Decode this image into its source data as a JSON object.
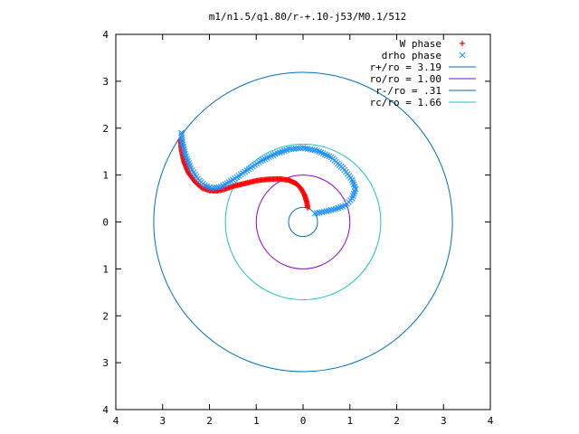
{
  "chart_data": {
    "type": "scatter",
    "title": "m1/n1.5/q1.80/r-+.10-j53/M0.1/512",
    "xlabel": "",
    "ylabel": "",
    "xlim": [
      -4,
      4
    ],
    "ylim": [
      -4,
      4
    ],
    "x_tick_labels": [
      "4",
      "3",
      "2",
      "1",
      "0",
      "1",
      "2",
      "3",
      "4"
    ],
    "y_tick_labels": [
      "4",
      "3",
      "2",
      "1",
      "0",
      "1",
      "2",
      "3",
      "4"
    ],
    "grid": false,
    "legend_position": "top-right",
    "series": [
      {
        "name": "W phase",
        "marker": "plus",
        "color": "#ff0000",
        "points": [
          [
            0.1,
            0.3
          ],
          [
            0.08,
            0.42
          ],
          [
            0.03,
            0.58
          ],
          [
            -0.05,
            0.72
          ],
          [
            -0.15,
            0.82
          ],
          [
            -0.3,
            0.89
          ],
          [
            -0.5,
            0.92
          ],
          [
            -0.75,
            0.91
          ],
          [
            -1.0,
            0.88
          ],
          [
            -1.25,
            0.82
          ],
          [
            -1.5,
            0.76
          ],
          [
            -1.7,
            0.69
          ],
          [
            -1.85,
            0.66
          ],
          [
            -2.0,
            0.67
          ],
          [
            -2.15,
            0.72
          ],
          [
            -2.3,
            0.85
          ],
          [
            -2.45,
            1.05
          ],
          [
            -2.55,
            1.3
          ],
          [
            -2.6,
            1.55
          ],
          [
            -2.62,
            1.75
          ]
        ]
      },
      {
        "name": "drho phase",
        "marker": "x",
        "color": "#1e90ff",
        "points": [
          [
            0.25,
            0.18
          ],
          [
            0.45,
            0.22
          ],
          [
            0.7,
            0.28
          ],
          [
            0.9,
            0.35
          ],
          [
            1.05,
            0.5
          ],
          [
            1.12,
            0.7
          ],
          [
            1.05,
            0.9
          ],
          [
            0.85,
            1.15
          ],
          [
            0.6,
            1.38
          ],
          [
            0.3,
            1.52
          ],
          [
            0.0,
            1.58
          ],
          [
            -0.3,
            1.55
          ],
          [
            -0.6,
            1.45
          ],
          [
            -0.9,
            1.3
          ],
          [
            -1.2,
            1.1
          ],
          [
            -1.5,
            0.9
          ],
          [
            -1.75,
            0.75
          ],
          [
            -1.95,
            0.72
          ],
          [
            -2.1,
            0.78
          ],
          [
            -2.25,
            0.92
          ],
          [
            -2.4,
            1.15
          ],
          [
            -2.52,
            1.45
          ],
          [
            -2.58,
            1.7
          ],
          [
            -2.6,
            1.9
          ]
        ]
      },
      {
        "name": "r+/ro = 3.19",
        "kind": "circle",
        "radius": 3.19,
        "color": "#0072b2"
      },
      {
        "name": "ro/ro = 1.00",
        "kind": "circle",
        "radius": 1.0,
        "color": "#9400d3"
      },
      {
        "name": "r-/ro = .31",
        "kind": "circle",
        "radius": 0.31,
        "color": "#0072b2"
      },
      {
        "name": "rc/ro = 1.66",
        "kind": "circle",
        "radius": 1.66,
        "color": "#20c0c0"
      }
    ]
  }
}
